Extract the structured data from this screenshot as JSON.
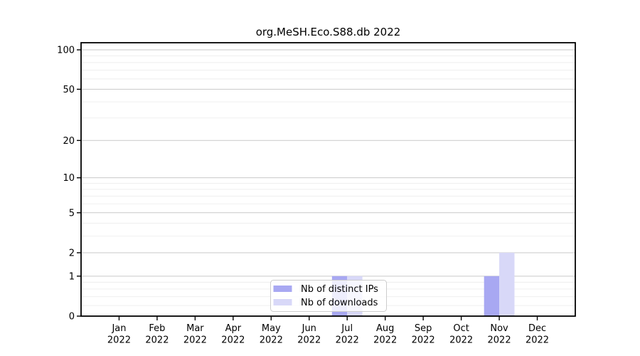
{
  "figure": {
    "background": "#ffffff"
  },
  "chart_data": {
    "type": "bar",
    "title": "org.MeSH.Eco.S88.db 2022",
    "xlabel": "",
    "ylabel": "",
    "x_tick_months": [
      "Jan",
      "Feb",
      "Mar",
      "Apr",
      "May",
      "Jun",
      "Jul",
      "Aug",
      "Sep",
      "Oct",
      "Nov",
      "Dec"
    ],
    "x_tick_years": [
      "2022",
      "2022",
      "2022",
      "2022",
      "2022",
      "2022",
      "2022",
      "2022",
      "2022",
      "2022",
      "2022",
      "2022"
    ],
    "series": [
      {
        "name": "Nb of distinct IPs",
        "color": "#a8a8f2",
        "values": [
          0,
          0,
          0,
          0,
          0,
          0,
          1,
          0,
          0,
          0,
          1,
          0
        ]
      },
      {
        "name": "Nb of downloads",
        "color": "#d8d8f8",
        "values": [
          0,
          0,
          0,
          0,
          0,
          0,
          1,
          0,
          0,
          0,
          2,
          0
        ]
      }
    ],
    "yscale": "log1p",
    "ylim": [
      0,
      113
    ],
    "y_major_ticks": [
      0,
      1,
      2,
      5,
      10,
      20,
      50,
      100
    ],
    "y_minor_ticks": [
      0.2,
      0.4,
      0.6,
      0.8,
      3,
      4,
      6,
      7,
      8,
      9,
      30,
      40,
      60,
      70,
      80,
      90
    ],
    "grid": true,
    "legend": {
      "location": "lower center",
      "entries": [
        "Nb of distinct IPs",
        "Nb of downloads"
      ]
    },
    "colors": {
      "spine": "#000000",
      "grid_major": "#c9c9c9",
      "grid_minor": "#ededed",
      "legend_border": "#cccccc",
      "legend_bg": "#ffffff",
      "text": "#000000"
    }
  }
}
